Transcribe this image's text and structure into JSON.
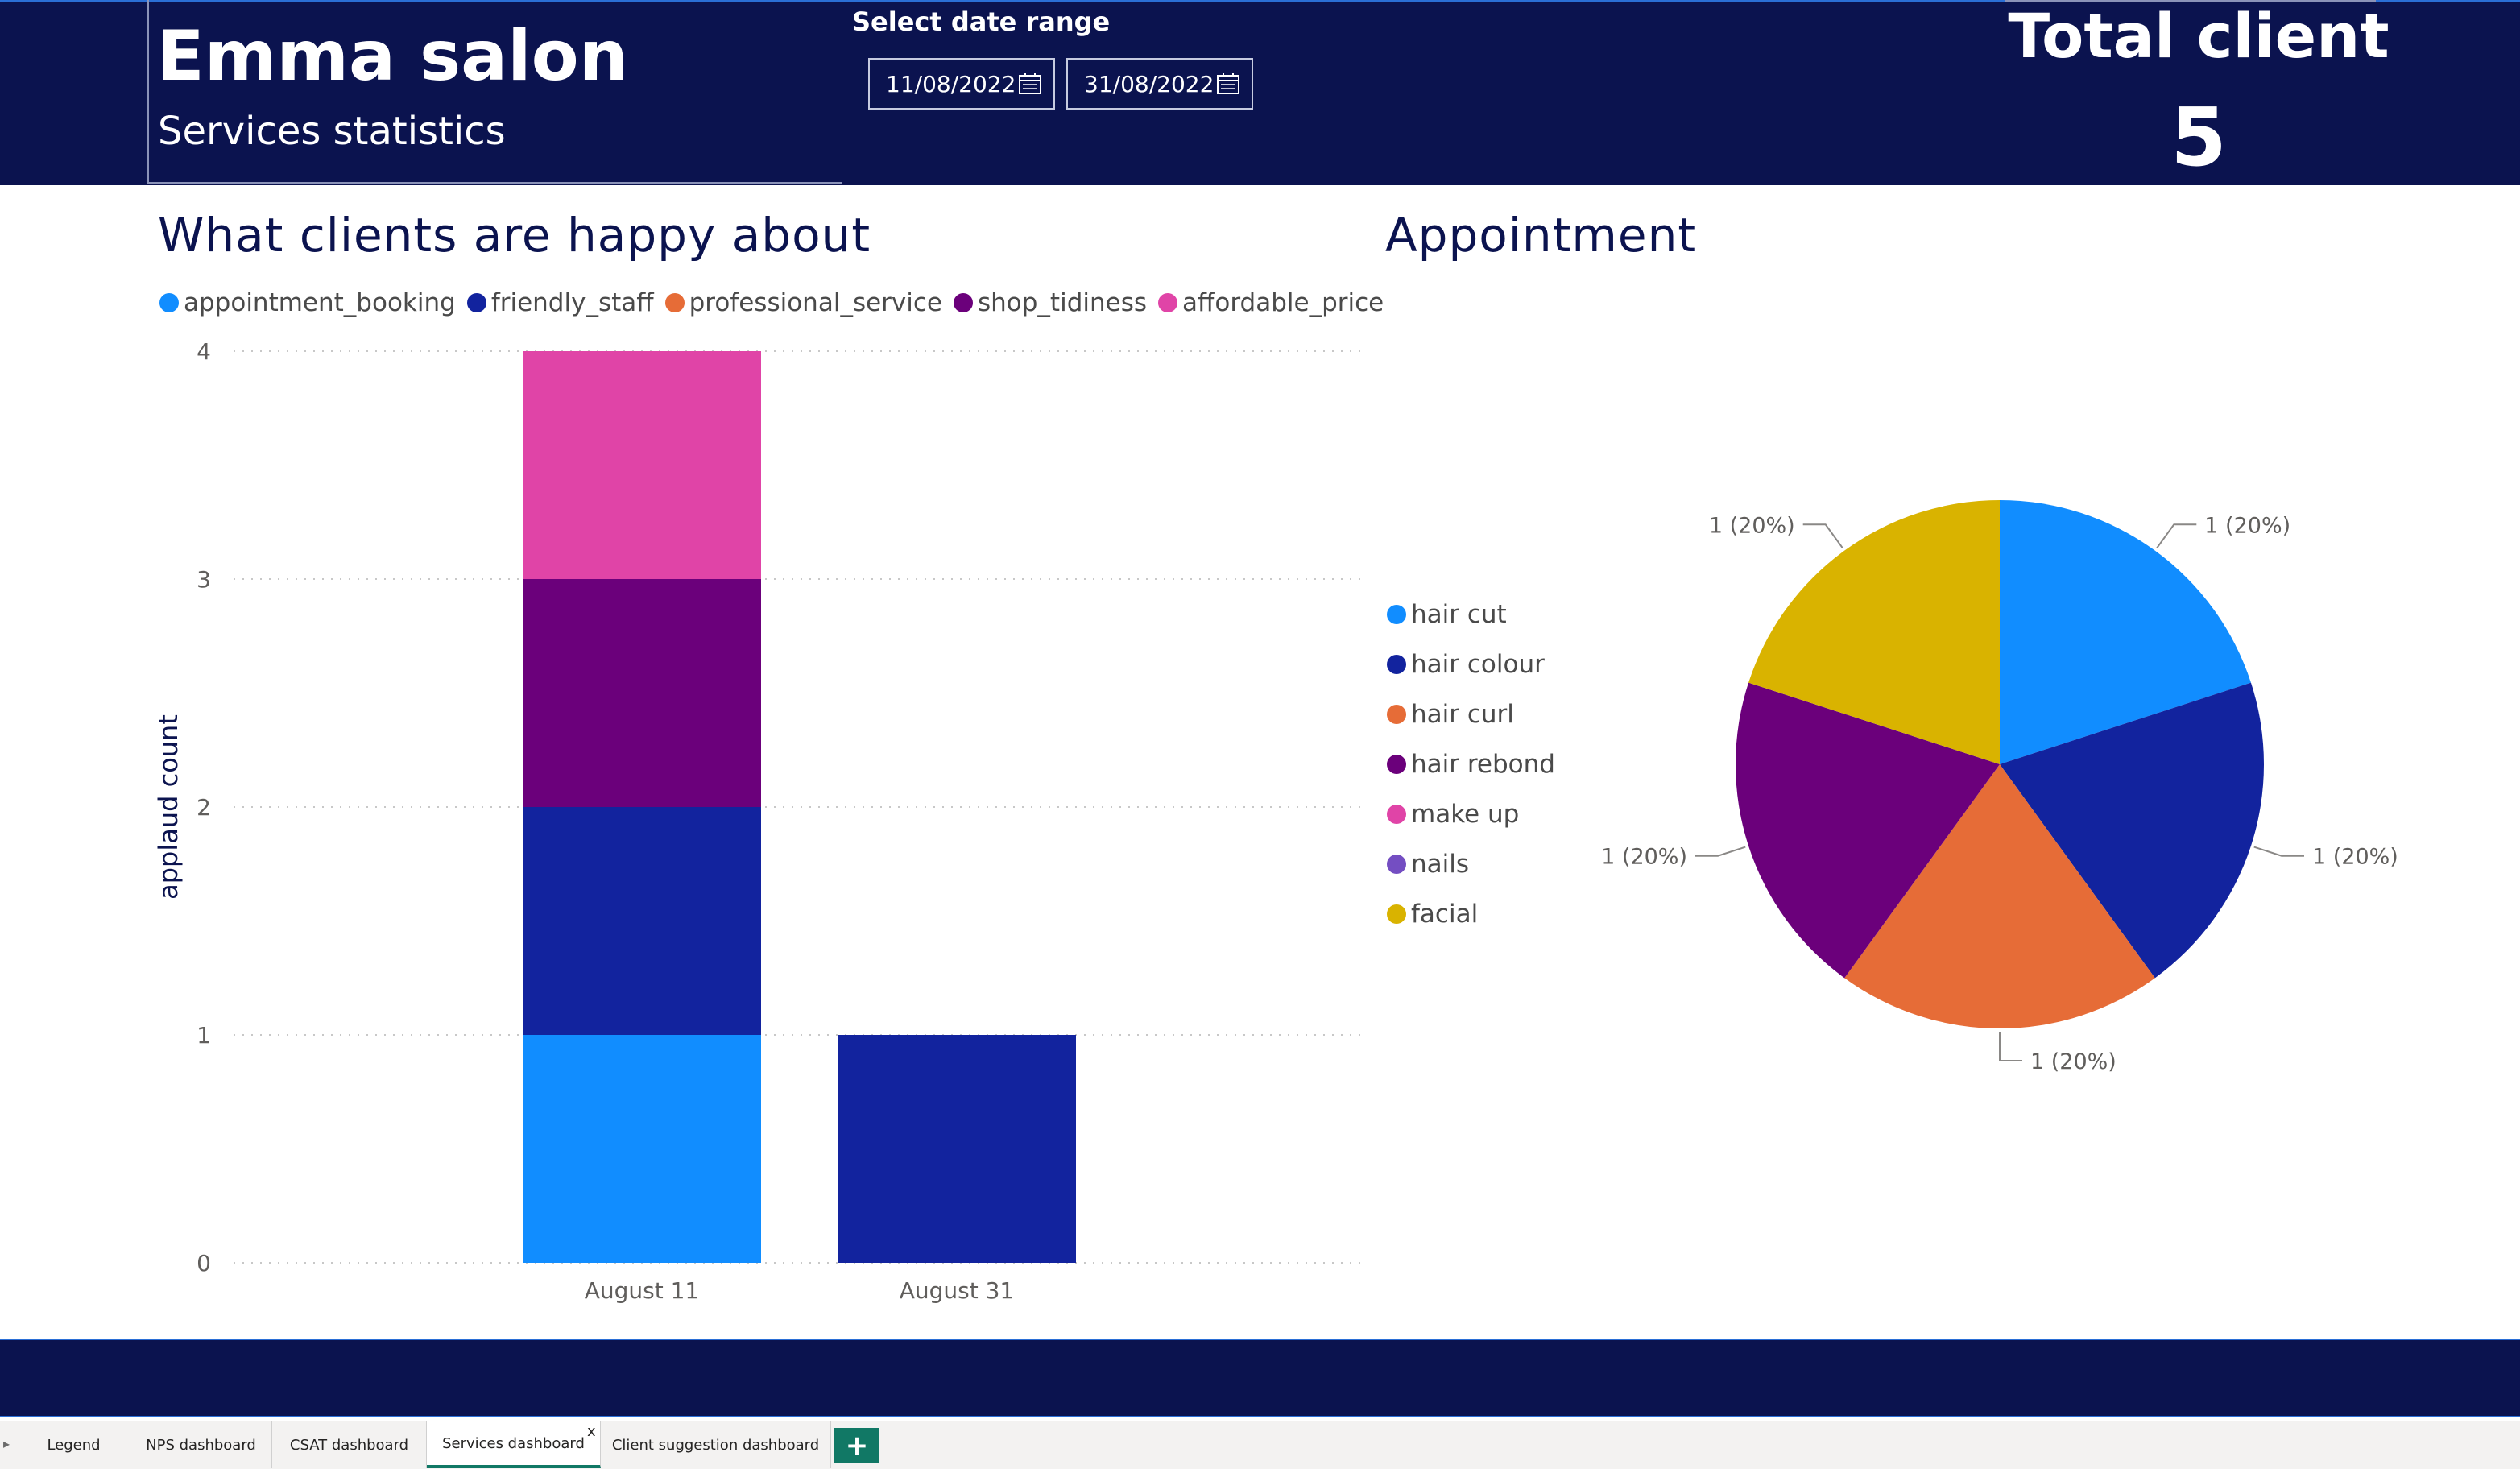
{
  "header": {
    "title": "Emma salon",
    "subtitle": "Services statistics",
    "date_range_label": "Select date range",
    "date_start": "11/08/2022",
    "date_end": "31/08/2022",
    "total_label": "Total client",
    "total_value": "5"
  },
  "bar_section": {
    "title": "What clients are happy about",
    "legend": [
      {
        "label": "appointment_booking",
        "color": "#118dff"
      },
      {
        "label": "friendly_staff",
        "color": "#12239e"
      },
      {
        "label": "professional_service",
        "color": "#e66c37"
      },
      {
        "label": "shop_tidiness",
        "color": "#6b007b"
      },
      {
        "label": "affordable_price",
        "color": "#e044a7"
      }
    ]
  },
  "pie_section": {
    "title": "Appointment",
    "legend": [
      {
        "label": "hair cut",
        "color": "#118dff"
      },
      {
        "label": "hair colour",
        "color": "#12239e"
      },
      {
        "label": "hair curl",
        "color": "#e66c37"
      },
      {
        "label": "hair rebond",
        "color": "#6b007b"
      },
      {
        "label": "make up",
        "color": "#e044a7"
      },
      {
        "label": "nails",
        "color": "#744ec2"
      },
      {
        "label": "facial",
        "color": "#d9b300"
      }
    ]
  },
  "chart_data": [
    {
      "type": "bar",
      "stacked": true,
      "title": "What clients are happy about",
      "ylabel": "applaud count",
      "xlabel": "",
      "categories": [
        "August 11",
        "August 31"
      ],
      "ylim": [
        0,
        4
      ],
      "yticks": [
        "0",
        "1",
        "2",
        "3",
        "4"
      ],
      "grid": true,
      "legend_position": "top",
      "series": [
        {
          "name": "appointment_booking",
          "color": "#118dff",
          "values": [
            1,
            0
          ]
        },
        {
          "name": "friendly_staff",
          "color": "#12239e",
          "values": [
            1,
            1
          ]
        },
        {
          "name": "professional_service",
          "color": "#e66c37",
          "values": [
            0,
            0
          ]
        },
        {
          "name": "shop_tidiness",
          "color": "#6b007b",
          "values": [
            1,
            0
          ]
        },
        {
          "name": "affordable_price",
          "color": "#e044a7",
          "values": [
            1,
            0
          ]
        }
      ]
    },
    {
      "type": "pie",
      "title": "Appointment",
      "legend_position": "left",
      "slices": [
        {
          "name": "hair cut",
          "value": 1,
          "label": "1 (20%)",
          "color": "#118dff"
        },
        {
          "name": "hair colour",
          "value": 1,
          "label": "1 (20%)",
          "color": "#12239e"
        },
        {
          "name": "hair curl",
          "value": 1,
          "label": "1 (20%)",
          "color": "#e66c37"
        },
        {
          "name": "hair rebond",
          "value": 1,
          "label": "1 (20%)",
          "color": "#6b007b"
        },
        {
          "name": "facial",
          "value": 1,
          "label": "1 (20%)",
          "color": "#d9b300"
        }
      ]
    }
  ],
  "tabs": [
    {
      "label": "Legend"
    },
    {
      "label": "NPS dashboard"
    },
    {
      "label": "CSAT dashboard"
    },
    {
      "label": "Services dashboard",
      "active": true
    },
    {
      "label": "Client suggestion dashboard"
    }
  ],
  "tab_close_label": "x",
  "add_tab_label": "+"
}
